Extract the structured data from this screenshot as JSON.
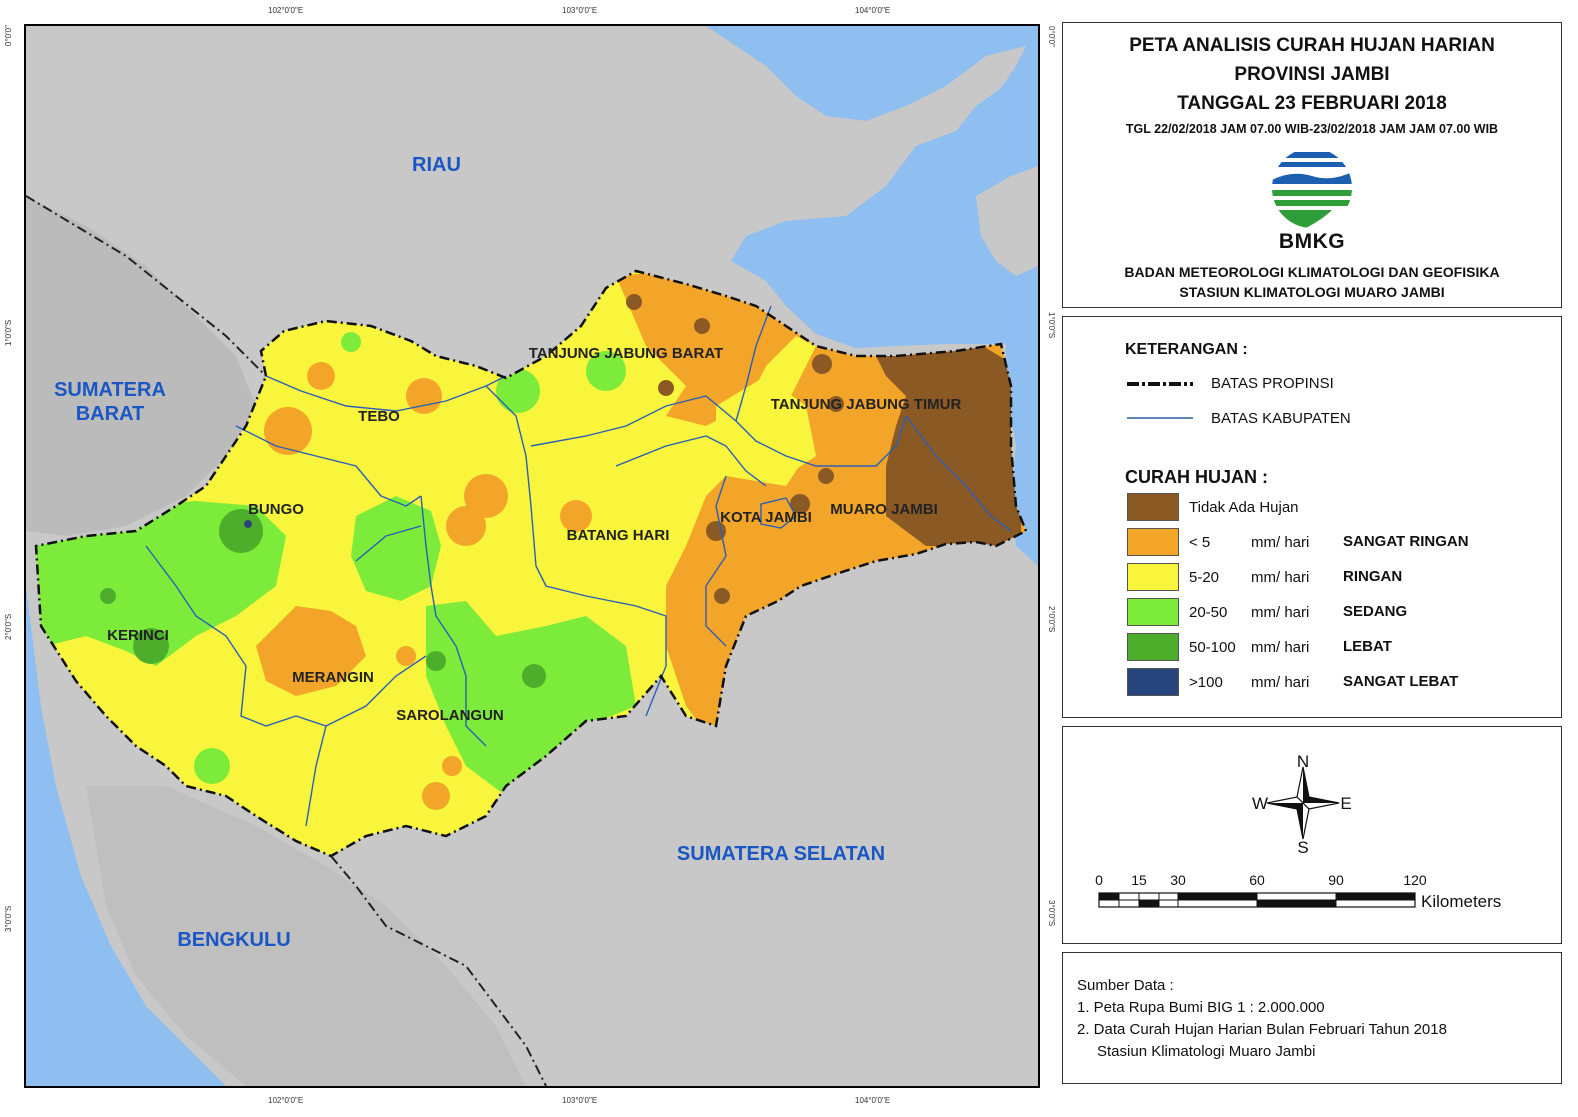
{
  "graticule": {
    "top": [
      "102°0'0\"E",
      "103°0'0\"E",
      "104°0'0\"E"
    ],
    "bottom": [
      "102°0'0\"E",
      "103°0'0\"E",
      "104°0'0\"E"
    ],
    "left": [
      "0°0'0\"",
      "1°0'0\"S",
      "2°0'0\"S",
      "3°0'0\"S"
    ],
    "right": [
      "0°0'0\"",
      "1°0'0\"S",
      "2°0'0\"S",
      "3°0'0\"S"
    ]
  },
  "map": {
    "regions": [
      "RIAU",
      "SUMATERA BARAT",
      "SUMATERA SELATAN",
      "BENGKULU"
    ],
    "regions_lines": [
      [
        "RIAU"
      ],
      [
        "SUMATERA",
        "BARAT"
      ],
      [
        "SUMATERA SELATAN"
      ],
      [
        "BENGKULU"
      ]
    ],
    "districts": [
      "TANJUNG JABUNG BARAT",
      "TANJUNG JABUNG TIMUR",
      "TEBO",
      "BUNGO",
      "BATANG HARI",
      "KOTA JAMBI",
      "MUARO JAMBI",
      "KERINCI",
      "MERANGIN",
      "SAROLANGUN"
    ],
    "colors": {
      "sea": "#8fbff0",
      "land": "#c8c8c8",
      "no_rain": "#8b5a24",
      "very_light": "#f2a529",
      "light": "#f8f53c",
      "moderate": "#7deb3a",
      "heavy": "#4dae2b",
      "very_heavy": "#26457d"
    }
  },
  "title": {
    "lines": [
      "PETA ANALISIS CURAH HUJAN HARIAN",
      "PROVINSI JAMBI",
      "TANGGAL 23 FEBRUARI 2018"
    ],
    "period": "TGL 22/02/2018 JAM 07.00 WIB-23/02/2018 JAM JAM 07.00 WIB",
    "logo_text": "BMKG",
    "org_lines": [
      "BADAN METEOROLOGI KLIMATOLOGI DAN GEOFISIKA",
      "STASIUN KLIMATOLOGI MUARO JAMBI"
    ]
  },
  "legend": {
    "heading": "KETERANGAN :",
    "lines": [
      {
        "label": "BATAS PROPINSI",
        "style": "dash-dot-black"
      },
      {
        "label": "BATAS KABUPATEN",
        "style": "solid-blue"
      }
    ],
    "rain_heading": "CURAH HUJAN :",
    "classes": [
      {
        "range": "Tidak Ada Hujan",
        "unit": "",
        "category": "",
        "color": "#8b5a24"
      },
      {
        "range": "< 5",
        "unit": "mm/ hari",
        "category": "SANGAT RINGAN",
        "color": "#f2a529"
      },
      {
        "range": "5-20",
        "unit": "mm/ hari",
        "category": "RINGAN",
        "color": "#f8f53c"
      },
      {
        "range": "20-50",
        "unit": "mm/ hari",
        "category": "SEDANG",
        "color": "#7deb3a"
      },
      {
        "range": "50-100",
        "unit": "mm/ hari",
        "category": "LEBAT",
        "color": "#4dae2b"
      },
      {
        "range": ">100",
        "unit": "mm/ hari",
        "category": "SANGAT LEBAT",
        "color": "#26457d"
      }
    ]
  },
  "compass": {
    "n": "N",
    "s": "S",
    "e": "E",
    "w": "W"
  },
  "scale": {
    "ticks": [
      "0",
      "15",
      "30",
      "60",
      "90",
      "120"
    ],
    "unit": "Kilometers"
  },
  "source": {
    "heading": "Sumber Data :",
    "items": [
      "1. Peta Rupa Bumi BIG 1 : 2.000.000",
      "2. Data Curah Hujan Harian Bulan Februari Tahun 2018"
    ],
    "continuation": "Stasiun Klimatologi Muaro Jambi"
  }
}
